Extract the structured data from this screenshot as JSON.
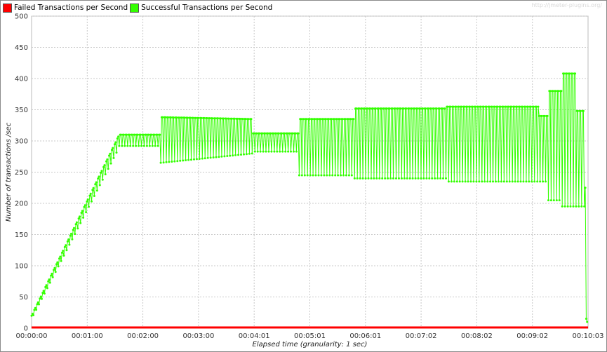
{
  "legend": {
    "failed_label": "Failed Transactions per Second",
    "success_label": "Successful Transactions per Second"
  },
  "watermark": "http://jmeter-plugins.org/",
  "colors": {
    "failed": "#ff0000",
    "success": "#33ff00",
    "grid": "#c8c8c8"
  },
  "chart_data": {
    "type": "line",
    "title": "",
    "xlabel": "Elapsed time (granularity: 1 sec)",
    "ylabel": "Number of transactions /sec",
    "ylim": [
      0,
      500
    ],
    "yticks": [
      0,
      50,
      100,
      150,
      200,
      250,
      300,
      350,
      400,
      450,
      500
    ],
    "xlim_seconds": [
      0,
      603
    ],
    "x_tick_labels": [
      "00:00:00",
      "00:01:00",
      "00:02:00",
      "00:03:00",
      "00:04:01",
      "00:05:01",
      "00:06:01",
      "00:07:02",
      "00:08:02",
      "00:09:02",
      "00:10:03"
    ],
    "grid": true,
    "legend_position": "top-left",
    "series": [
      {
        "name": "Failed Transactions per Second",
        "x_seconds": [
          0,
          603
        ],
        "values": [
          0,
          0
        ]
      },
      {
        "name": "Successful Transactions per Second",
        "segments": [
          {
            "x_start": 0,
            "x_end": 95,
            "low_start": 15,
            "low_end": 290,
            "high_start": 20,
            "high_end": 310
          },
          {
            "x_start": 95,
            "x_end": 140,
            "low_start": 292,
            "low_end": 292,
            "high_start": 310,
            "high_end": 310
          },
          {
            "x_start": 140,
            "x_end": 240,
            "low_start": 265,
            "low_end": 280,
            "high_start": 338,
            "high_end": 335
          },
          {
            "x_start": 240,
            "x_end": 290,
            "low_start": 283,
            "low_end": 283,
            "high_start": 312,
            "high_end": 312
          },
          {
            "x_start": 290,
            "x_end": 350,
            "low_start": 245,
            "low_end": 245,
            "high_start": 335,
            "high_end": 335
          },
          {
            "x_start": 350,
            "x_end": 450,
            "low_start": 240,
            "low_end": 240,
            "high_start": 352,
            "high_end": 352
          },
          {
            "x_start": 450,
            "x_end": 550,
            "low_start": 235,
            "low_end": 235,
            "high_start": 355,
            "high_end": 355
          },
          {
            "x_start": 550,
            "x_end": 560,
            "low_start": 235,
            "low_end": 235,
            "high_start": 340,
            "high_end": 340
          },
          {
            "x_start": 560,
            "x_end": 575,
            "low_start": 205,
            "low_end": 205,
            "high_start": 380,
            "high_end": 380
          },
          {
            "x_start": 575,
            "x_end": 590,
            "low_start": 195,
            "low_end": 195,
            "high_start": 408,
            "high_end": 408
          },
          {
            "x_start": 590,
            "x_end": 600,
            "low_start": 195,
            "low_end": 195,
            "high_start": 348,
            "high_end": 348
          }
        ],
        "tail_x_seconds": [
          600,
          601,
          602
        ],
        "tail_values": [
          225,
          15,
          10
        ]
      }
    ]
  }
}
